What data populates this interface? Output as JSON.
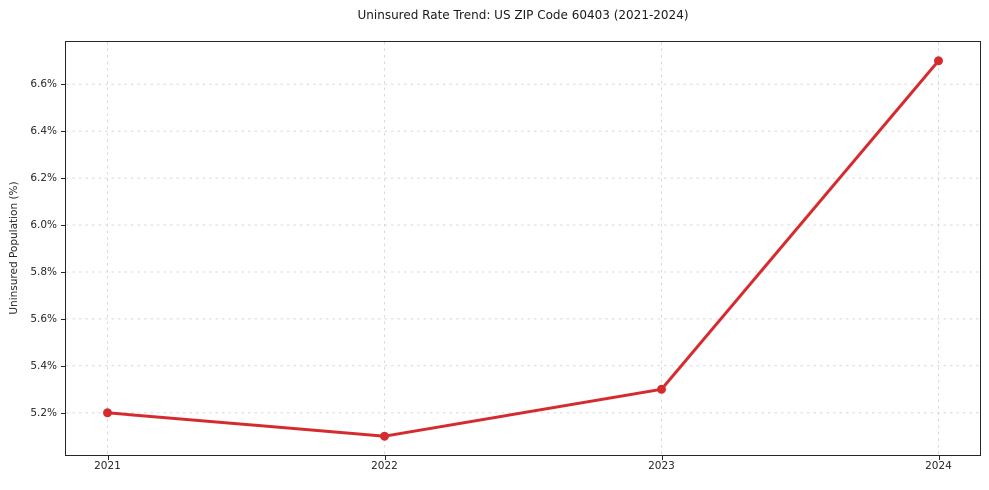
{
  "chart_data": {
    "type": "line",
    "title": "Uninsured Rate Trend: US ZIP Code 60403 (2021-2024)",
    "ylabel": "Uninsured Population (%)",
    "xlabel": "",
    "x": [
      2021,
      2022,
      2023,
      2024
    ],
    "values": [
      5.2,
      5.1,
      5.3,
      6.7
    ],
    "xtick_labels": [
      "2021",
      "2022",
      "2023",
      "2024"
    ],
    "yticks": [
      5.2,
      5.4,
      5.6,
      5.8,
      6.0,
      6.2,
      6.4,
      6.6
    ],
    "ytick_labels": [
      "5.2%",
      "5.4%",
      "5.6%",
      "5.8%",
      "6.0%",
      "6.2%",
      "6.4%",
      "6.6%"
    ],
    "xlim": [
      2020.85,
      2024.15
    ],
    "ylim": [
      5.02,
      6.78
    ],
    "grid": true,
    "legend": "none",
    "line_color": "#d62b2e",
    "marker": "circle"
  },
  "colors": {
    "background": "#ffffff",
    "grid": "#d8d8d8",
    "spine": "#262626",
    "text": "#262626",
    "line": "#d62b2e"
  }
}
